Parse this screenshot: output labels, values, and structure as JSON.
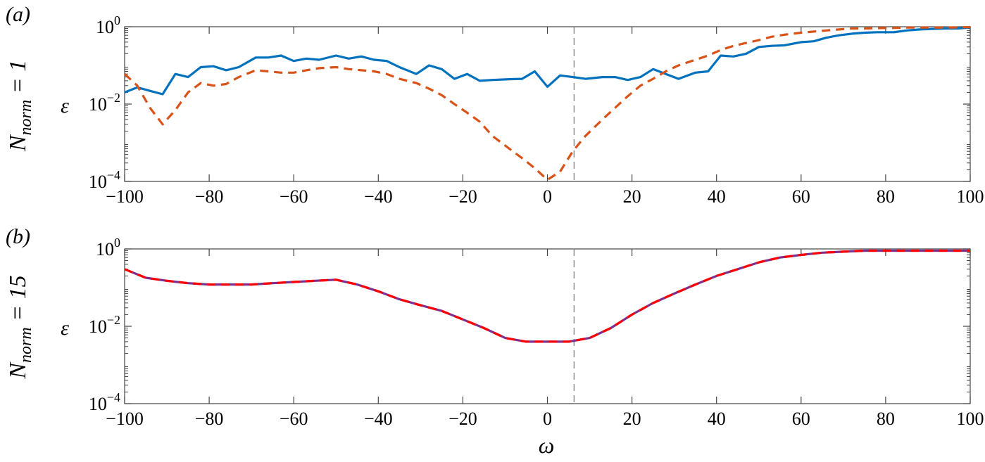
{
  "chart_data": [
    {
      "type": "line",
      "panel_label": "(a)",
      "side_label_main": "N",
      "side_label_sub": "norm",
      "side_label_tail": " = 1",
      "ylabel": "ε",
      "xlabel": "",
      "y_scale": "log",
      "xlim": [
        -100,
        100
      ],
      "ylim": [
        0.0001,
        1
      ],
      "x_ticks": [
        -100,
        -80,
        -60,
        -40,
        -20,
        0,
        20,
        40,
        60,
        80,
        100
      ],
      "x_tick_labels": [
        "−100",
        "−80",
        "−60",
        "−40",
        "−20",
        "0",
        "20",
        "40",
        "60",
        "80",
        "100"
      ],
      "y_ticks": [
        0.0001,
        0.01,
        1
      ],
      "y_tick_labels": [
        [
          "10",
          "−4"
        ],
        [
          "10",
          "−2"
        ],
        [
          "10",
          "0"
        ]
      ],
      "vline_x": 6.3,
      "series": [
        {
          "color": "#0072BD",
          "dash": "solid",
          "x": [
            -100,
            -97,
            -94,
            -91,
            -88,
            -85,
            -82,
            -79,
            -76,
            -73,
            -69,
            -66,
            -63,
            -60,
            -57,
            -54,
            -50,
            -47,
            -44,
            -41,
            -38,
            -35,
            -31,
            -28,
            -25,
            -22,
            -19,
            -16,
            -13,
            -9,
            -6,
            -3,
            0,
            3,
            6,
            9,
            13,
            16,
            19,
            22,
            25,
            28,
            31,
            35,
            38,
            41,
            44,
            47,
            50,
            53,
            56,
            60,
            63,
            66,
            69,
            72,
            75,
            78,
            82,
            85,
            88,
            91,
            94,
            97,
            100
          ],
          "y": [
            0.02,
            0.027,
            0.022,
            0.018,
            0.06,
            0.05,
            0.09,
            0.095,
            0.075,
            0.09,
            0.16,
            0.16,
            0.18,
            0.13,
            0.15,
            0.14,
            0.18,
            0.15,
            0.17,
            0.14,
            0.13,
            0.09,
            0.06,
            0.1,
            0.08,
            0.045,
            0.06,
            0.04,
            0.042,
            0.044,
            0.045,
            0.07,
            0.028,
            0.055,
            0.05,
            0.045,
            0.05,
            0.05,
            0.042,
            0.05,
            0.08,
            0.06,
            0.045,
            0.065,
            0.07,
            0.18,
            0.17,
            0.2,
            0.3,
            0.32,
            0.33,
            0.4,
            0.42,
            0.52,
            0.6,
            0.66,
            0.7,
            0.72,
            0.72,
            0.8,
            0.85,
            0.88,
            0.9,
            0.9,
            0.95
          ]
        },
        {
          "color": "#D95319",
          "dash": "dashed",
          "x": [
            -100,
            -97,
            -94,
            -91,
            -88,
            -85,
            -82,
            -79,
            -76,
            -73,
            -69,
            -66,
            -63,
            -60,
            -57,
            -54,
            -50,
            -47,
            -44,
            -41,
            -38,
            -35,
            -31,
            -28,
            -25,
            -22,
            -19,
            -16,
            -13,
            -9,
            -6,
            -3,
            0,
            3,
            6,
            9,
            13,
            16,
            19,
            22,
            25,
            28,
            31,
            35,
            38,
            41,
            44,
            47,
            50,
            53,
            56,
            60,
            63,
            66,
            69,
            72,
            75,
            78,
            82,
            85,
            88,
            91,
            94,
            97,
            100
          ],
          "y": [
            0.06,
            0.03,
            0.008,
            0.003,
            0.007,
            0.02,
            0.035,
            0.03,
            0.033,
            0.05,
            0.075,
            0.07,
            0.065,
            0.065,
            0.075,
            0.085,
            0.09,
            0.08,
            0.075,
            0.07,
            0.06,
            0.045,
            0.035,
            0.025,
            0.017,
            0.01,
            0.006,
            0.0035,
            0.0015,
            0.0007,
            0.0004,
            0.00022,
            0.00011,
            0.00018,
            0.0006,
            0.0015,
            0.004,
            0.008,
            0.016,
            0.03,
            0.045,
            0.07,
            0.1,
            0.14,
            0.18,
            0.25,
            0.32,
            0.38,
            0.45,
            0.55,
            0.62,
            0.7,
            0.75,
            0.8,
            0.85,
            0.9,
            0.9,
            0.92,
            0.93,
            0.95,
            0.95,
            0.95,
            0.95,
            0.96,
            0.98
          ]
        }
      ]
    },
    {
      "type": "line",
      "panel_label": "(b)",
      "side_label_main": "N",
      "side_label_sub": "norm",
      "side_label_tail": " = 15",
      "ylabel": "ε",
      "xlabel": "ω",
      "y_scale": "log",
      "xlim": [
        -100,
        100
      ],
      "ylim": [
        0.0001,
        1
      ],
      "x_ticks": [
        -100,
        -80,
        -60,
        -40,
        -20,
        0,
        20,
        40,
        60,
        80,
        100
      ],
      "x_tick_labels": [
        "−100",
        "−80",
        "−60",
        "−40",
        "−20",
        "0",
        "20",
        "40",
        "60",
        "80",
        "100"
      ],
      "y_ticks": [
        0.0001,
        0.01,
        1
      ],
      "y_tick_labels": [
        [
          "10",
          "−4"
        ],
        [
          "10",
          "−2"
        ],
        [
          "10",
          "0"
        ]
      ],
      "vline_x": 6.3,
      "series": [
        {
          "color": "#7E2F8E",
          "dash": "solid",
          "x": [
            -100,
            -95,
            -90,
            -85,
            -80,
            -75,
            -70,
            -65,
            -60,
            -55,
            -50,
            -45,
            -40,
            -35,
            -30,
            -25,
            -20,
            -15,
            -10,
            -5,
            0,
            5,
            10,
            15,
            20,
            25,
            30,
            35,
            40,
            45,
            50,
            55,
            60,
            65,
            70,
            75,
            80,
            85,
            90,
            95,
            100
          ],
          "y": [
            0.3,
            0.18,
            0.15,
            0.13,
            0.12,
            0.12,
            0.12,
            0.13,
            0.14,
            0.15,
            0.16,
            0.12,
            0.08,
            0.05,
            0.035,
            0.025,
            0.015,
            0.009,
            0.005,
            0.004,
            0.004,
            0.004,
            0.005,
            0.009,
            0.02,
            0.04,
            0.07,
            0.12,
            0.2,
            0.3,
            0.45,
            0.6,
            0.7,
            0.8,
            0.85,
            0.9,
            0.9,
            0.9,
            0.9,
            0.9,
            0.9
          ]
        },
        {
          "color": "#FF0000",
          "dash": "dashed",
          "x": [
            -100,
            -95,
            -90,
            -85,
            -80,
            -75,
            -70,
            -65,
            -60,
            -55,
            -50,
            -45,
            -40,
            -35,
            -30,
            -25,
            -20,
            -15,
            -10,
            -5,
            0,
            5,
            10,
            15,
            20,
            25,
            30,
            35,
            40,
            45,
            50,
            55,
            60,
            65,
            70,
            75,
            80,
            85,
            90,
            95,
            100
          ],
          "y": [
            0.3,
            0.18,
            0.15,
            0.13,
            0.12,
            0.12,
            0.12,
            0.13,
            0.14,
            0.15,
            0.16,
            0.12,
            0.08,
            0.05,
            0.035,
            0.025,
            0.015,
            0.009,
            0.005,
            0.004,
            0.004,
            0.004,
            0.005,
            0.009,
            0.02,
            0.04,
            0.07,
            0.12,
            0.2,
            0.3,
            0.45,
            0.6,
            0.7,
            0.8,
            0.85,
            0.9,
            0.9,
            0.9,
            0.9,
            0.9,
            0.9
          ]
        }
      ]
    }
  ]
}
